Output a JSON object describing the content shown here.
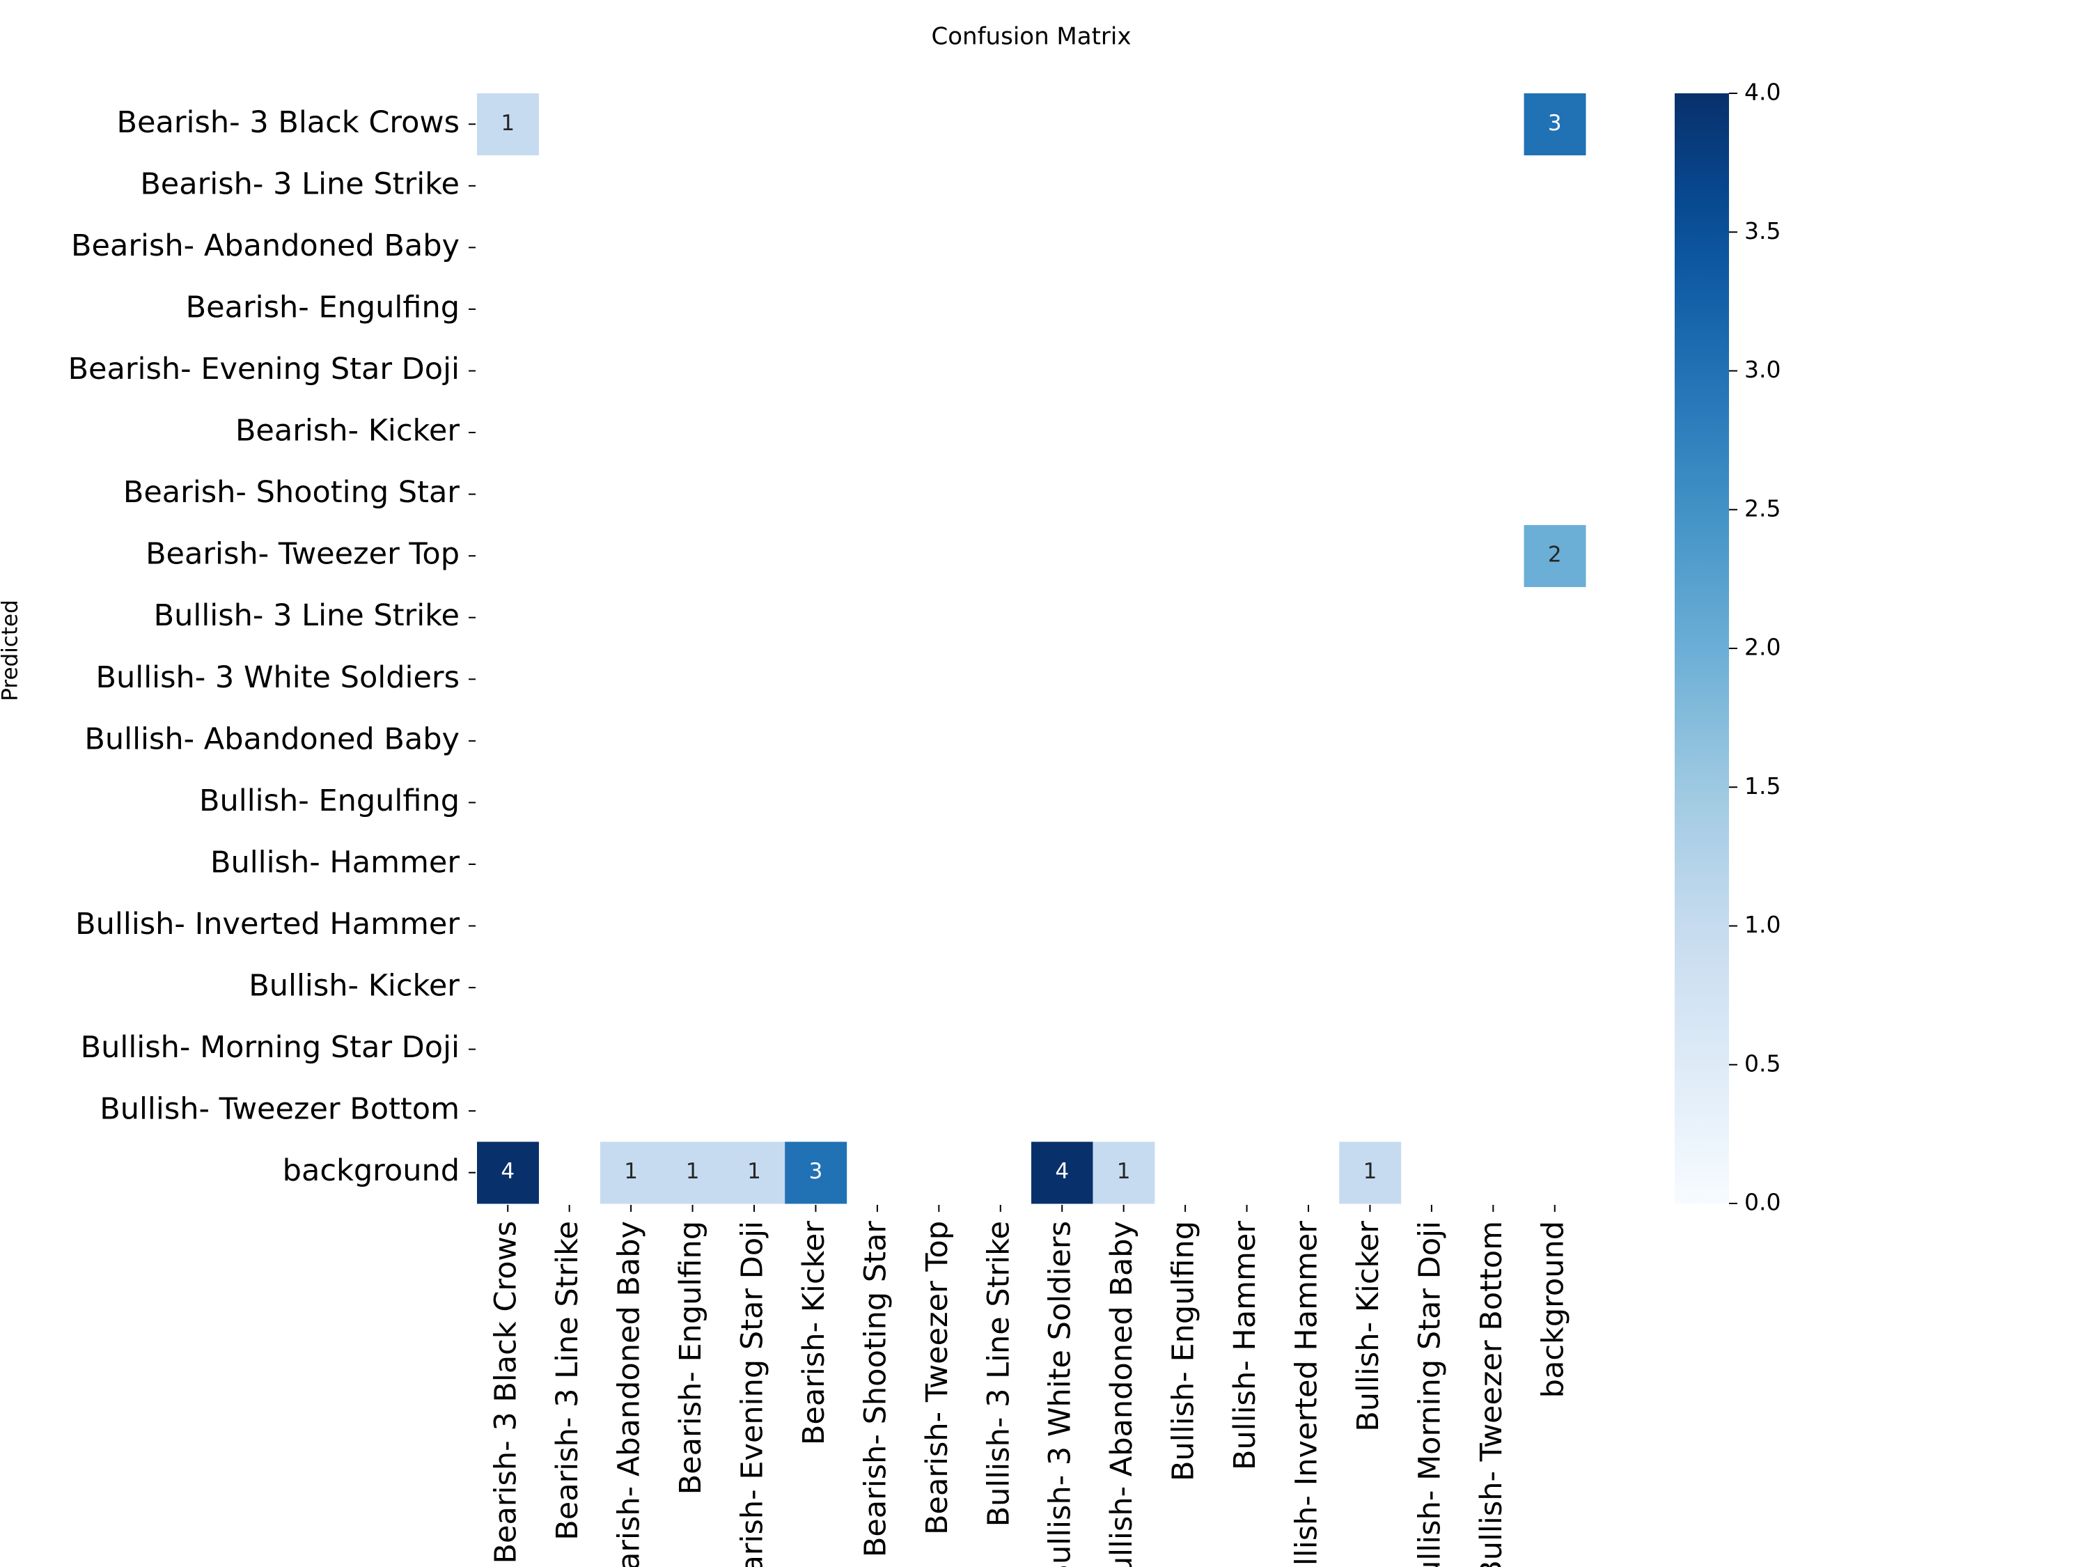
{
  "chart_data": {
    "type": "heatmap",
    "title": "Confusion Matrix",
    "y_label": "Predicted",
    "colormap": "Blues",
    "categories": [
      "Bearish- 3 Black Crows",
      "Bearish- 3 Line Strike",
      "Bearish- Abandoned Baby",
      "Bearish- Engulfing",
      "Bearish- Evening Star Doji",
      "Bearish- Kicker",
      "Bearish- Shooting Star",
      "Bearish- Tweezer Top",
      "Bullish- 3 Line Strike",
      "Bullish- 3 White Soldiers",
      "Bullish- Abandoned Baby",
      "Bullish- Engulfing",
      "Bullish- Hammer",
      "Bullish- Inverted Hammer",
      "Bullish- Kicker",
      "Bullish- Morning Star Doji",
      "Bullish- Tweezer Bottom",
      "background"
    ],
    "values": [
      [
        1,
        null,
        null,
        null,
        null,
        null,
        null,
        null,
        null,
        null,
        null,
        null,
        null,
        null,
        null,
        null,
        null,
        3
      ],
      [
        null,
        null,
        null,
        null,
        null,
        null,
        null,
        null,
        null,
        null,
        null,
        null,
        null,
        null,
        null,
        null,
        null,
        null
      ],
      [
        null,
        null,
        null,
        null,
        null,
        null,
        null,
        null,
        null,
        null,
        null,
        null,
        null,
        null,
        null,
        null,
        null,
        null
      ],
      [
        null,
        null,
        null,
        null,
        null,
        null,
        null,
        null,
        null,
        null,
        null,
        null,
        null,
        null,
        null,
        null,
        null,
        null
      ],
      [
        null,
        null,
        null,
        null,
        null,
        null,
        null,
        null,
        null,
        null,
        null,
        null,
        null,
        null,
        null,
        null,
        null,
        null
      ],
      [
        null,
        null,
        null,
        null,
        null,
        null,
        null,
        null,
        null,
        null,
        null,
        null,
        null,
        null,
        null,
        null,
        null,
        null
      ],
      [
        null,
        null,
        null,
        null,
        null,
        null,
        null,
        null,
        null,
        null,
        null,
        null,
        null,
        null,
        null,
        null,
        null,
        null
      ],
      [
        null,
        null,
        null,
        null,
        null,
        null,
        null,
        null,
        null,
        null,
        null,
        null,
        null,
        null,
        null,
        null,
        null,
        2
      ],
      [
        null,
        null,
        null,
        null,
        null,
        null,
        null,
        null,
        null,
        null,
        null,
        null,
        null,
        null,
        null,
        null,
        null,
        null
      ],
      [
        null,
        null,
        null,
        null,
        null,
        null,
        null,
        null,
        null,
        null,
        null,
        null,
        null,
        null,
        null,
        null,
        null,
        null
      ],
      [
        null,
        null,
        null,
        null,
        null,
        null,
        null,
        null,
        null,
        null,
        null,
        null,
        null,
        null,
        null,
        null,
        null,
        null
      ],
      [
        null,
        null,
        null,
        null,
        null,
        null,
        null,
        null,
        null,
        null,
        null,
        null,
        null,
        null,
        null,
        null,
        null,
        null
      ],
      [
        null,
        null,
        null,
        null,
        null,
        null,
        null,
        null,
        null,
        null,
        null,
        null,
        null,
        null,
        null,
        null,
        null,
        null
      ],
      [
        null,
        null,
        null,
        null,
        null,
        null,
        null,
        null,
        null,
        null,
        null,
        null,
        null,
        null,
        null,
        null,
        null,
        null
      ],
      [
        null,
        null,
        null,
        null,
        null,
        null,
        null,
        null,
        null,
        null,
        null,
        null,
        null,
        null,
        null,
        null,
        null,
        null
      ],
      [
        null,
        null,
        null,
        null,
        null,
        null,
        null,
        null,
        null,
        null,
        null,
        null,
        null,
        null,
        null,
        null,
        null,
        null
      ],
      [
        null,
        null,
        null,
        null,
        null,
        null,
        null,
        null,
        null,
        null,
        null,
        null,
        null,
        null,
        null,
        null,
        null,
        null
      ],
      [
        4,
        null,
        1,
        1,
        1,
        3,
        null,
        null,
        null,
        4,
        1,
        null,
        null,
        null,
        1,
        null,
        null,
        null
      ]
    ],
    "clim": [
      0,
      4
    ],
    "cticks": [
      {
        "value": 0,
        "label": "0.0"
      },
      0.5,
      {
        "value": 1,
        "label": "1.0"
      },
      1.5,
      {
        "value": 2,
        "label": "2.0"
      },
      2.5,
      {
        "value": 3,
        "label": "3.0"
      },
      3.5,
      {
        "value": 4,
        "label": "4.0"
      }
    ]
  }
}
